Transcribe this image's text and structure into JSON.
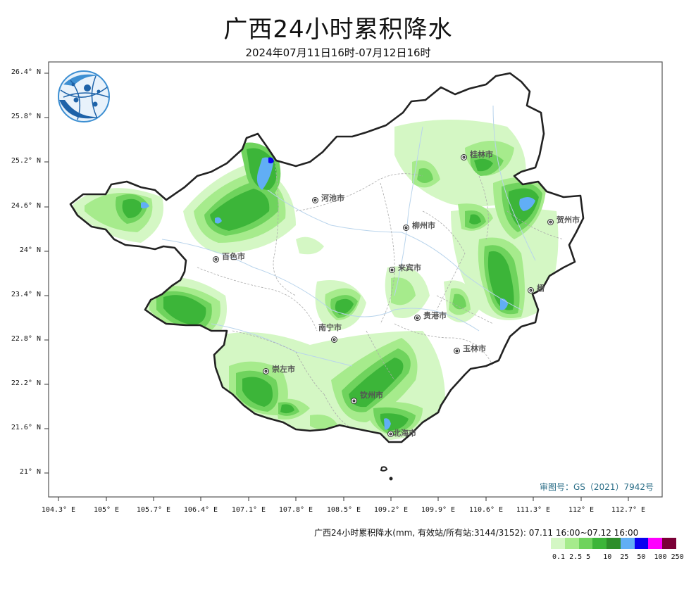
{
  "title": "广西24小时累积降水",
  "subtitle": "2024年07月11日16时-07月12日16时",
  "lat_labels": [
    "26.4° N",
    "25.8° N",
    "25.2° N",
    "24.6° N",
    "24° N",
    "23.4° N",
    "22.8° N",
    "22.2° N",
    "21.6° N",
    "21° N"
  ],
  "lon_labels": [
    "104.3° E",
    "105° E",
    "105.7° E",
    "106.4° E",
    "107.1° E",
    "107.8° E",
    "108.5° E",
    "109.2° E",
    "109.9° E",
    "110.6° E",
    "111.3° E",
    "112° E",
    "112.7° E"
  ],
  "cities": [
    {
      "name": "桂林市"
    },
    {
      "name": "河池市"
    },
    {
      "name": "柳州市"
    },
    {
      "name": "贺州市"
    },
    {
      "name": "百色市"
    },
    {
      "name": "来宾市"
    },
    {
      "name": "梧"
    },
    {
      "name": "贵港市"
    },
    {
      "name": "南宁市"
    },
    {
      "name": "玉林市"
    },
    {
      "name": "崇左市"
    },
    {
      "name": "钦州市"
    },
    {
      "name": "北海市"
    }
  ],
  "review_number": "审图号：GS（2021）7942号",
  "legend": {
    "title": "广西24小时累积降水(mm, 有效站/所有站:3144/3152): 07.11 16:00~07.12 16:00",
    "ticks": "0.1 2.5 5   10  25  50  100 250",
    "colors": [
      "#d4f7c4",
      "#a6eb8c",
      "#6fd35d",
      "#3cb539",
      "#2e8e2b",
      "#61aef5",
      "#0a00f0",
      "#ff00ff",
      "#7a0036"
    ]
  },
  "logo_icon": "globe-network-logo"
}
